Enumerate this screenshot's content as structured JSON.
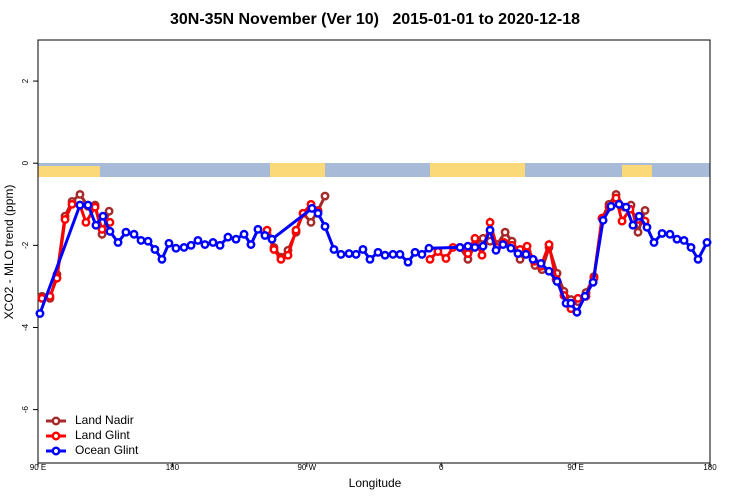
{
  "chart_data": {
    "type": "line",
    "title": "30N-35N November (Ver 10)   2015-01-01 to 2020-12-18",
    "x_label": "Longitude",
    "y_label": "XCO2 - MLO trend (ppm)",
    "xlim": [
      90,
      540
    ],
    "ylim": [
      -7.3,
      3
    ],
    "xticks": [
      {
        "value": 90,
        "label": "90 E"
      },
      180,
      {
        "value": 270,
        "label": "90 W"
      },
      0,
      {
        "value": 450,
        "label": "90 E"
      },
      {
        "value": 540,
        "label": "180"
      }
    ],
    "yticks": [
      -6,
      -4,
      -2,
      0,
      2
    ],
    "legend": "bottom-left",
    "series": [
      {
        "name": "Land Nadir",
        "color": "#a52a2a",
        "x": [
          92.7,
          98.0,
          102.7,
          108.1,
          112.8,
          118.1,
          123.5,
          128.2,
          132.9,
          137.6,
          null,
          243.4,
          248.0,
          252.7,
          257.4,
          262.8,
          267.5,
          272.8,
          277.5,
          282.2,
          null,
          372.6,
          377.9,
          382.6,
          388.0,
          392.7,
          397.4,
          402.8,
          407.4,
          412.8,
          417.5,
          422.8,
          427.5,
          432.2,
          437.6,
          442.2,
          446.9,
          451.6,
          457.0,
          462.3,
          467.7,
          472.4,
          477.1,
          482.5,
          487.1,
          491.8,
          496.5
        ],
        "values": [
          -3.24,
          -3.29,
          -2.71,
          -1.29,
          -0.93,
          -0.76,
          -1.05,
          -1.02,
          -1.73,
          -1.17,
          null,
          -1.73,
          -2.05,
          -2.29,
          -2.12,
          -1.68,
          -1.22,
          -1.44,
          -1.15,
          -0.8,
          null,
          -2.05,
          -2.34,
          -1.98,
          -1.83,
          -1.9,
          -1.98,
          -1.68,
          -1.9,
          -2.34,
          -2.15,
          -2.49,
          -2.59,
          -2.05,
          -2.68,
          -3.12,
          -3.32,
          -3.37,
          -3.15,
          -2.76,
          -1.34,
          -1.0,
          -0.76,
          -1.07,
          -1.02,
          -1.68,
          -1.15
        ]
      },
      {
        "name": "Land Glint",
        "color": "#ff0000",
        "x": [
          92.7,
          98.0,
          102.7,
          108.1,
          112.8,
          118.1,
          122.1,
          128.2,
          132.9,
          138.2,
          null,
          243.4,
          248.0,
          252.7,
          257.4,
          262.8,
          267.5,
          272.8,
          277.5,
          null,
          352.5,
          357.8,
          363.2,
          367.9,
          372.6,
          377.9,
          382.6,
          387.3,
          392.7,
          397.4,
          402.1,
          407.4,
          412.8,
          417.5,
          422.2,
          426.8,
          432.2,
          436.9,
          442.2,
          446.9,
          451.6,
          457.0,
          462.3,
          467.7,
          472.4,
          477.1,
          481.1,
          486.4,
          491.8,
          496.5
        ],
        "values": [
          -3.29,
          -3.24,
          -2.8,
          -1.37,
          -1.0,
          -1.02,
          -1.44,
          -1.07,
          -1.61,
          -1.44,
          null,
          -1.63,
          -2.1,
          -2.34,
          -2.24,
          -1.63,
          -1.22,
          -1.0,
          -1.17,
          null,
          -2.34,
          -2.15,
          -2.32,
          -2.05,
          -2.05,
          -2.2,
          -1.83,
          -2.24,
          -1.44,
          -2.05,
          -1.93,
          -2.0,
          -2.1,
          -2.02,
          -2.39,
          -2.51,
          -1.98,
          -2.83,
          -3.22,
          -3.54,
          -3.29,
          -3.24,
          -2.8,
          -1.34,
          -1.07,
          -0.85,
          -1.41,
          -1.12,
          -1.37,
          -1.41
        ]
      },
      {
        "name": "Ocean Glint",
        "color": "#0000ff",
        "x": [
          91.3,
          118.1,
          123.5,
          128.8,
          133.5,
          138.2,
          143.6,
          148.9,
          154.3,
          159.0,
          163.7,
          168.3,
          173.0,
          177.7,
          182.4,
          187.8,
          192.5,
          197.1,
          201.8,
          207.2,
          211.9,
          217.2,
          222.6,
          228.0,
          232.6,
          237.3,
          242.0,
          246.7,
          273.5,
          277.5,
          282.2,
          288.2,
          292.9,
          298.3,
          303.0,
          307.6,
          312.3,
          317.7,
          322.4,
          327.7,
          332.4,
          337.8,
          342.5,
          347.1,
          351.8,
          372.6,
          377.9,
          382.6,
          388.0,
          392.7,
          396.7,
          401.4,
          406.7,
          411.4,
          416.8,
          421.5,
          426.8,
          432.2,
          437.6,
          443.6,
          446.9,
          450.9,
          456.3,
          461.7,
          468.4,
          473.7,
          479.1,
          483.8,
          488.4,
          492.5,
          497.8,
          502.5,
          507.9,
          513.2,
          517.9,
          522.6,
          527.3,
          532.0,
          538.0
        ],
        "values": [
          -3.66,
          -1.02,
          -1.02,
          -1.51,
          -1.29,
          -1.66,
          -1.93,
          -1.68,
          -1.73,
          -1.88,
          -1.9,
          -2.1,
          -2.34,
          -1.95,
          -2.07,
          -2.05,
          -2.0,
          -1.88,
          -1.98,
          -1.93,
          -2.0,
          -1.8,
          -1.85,
          -1.73,
          -1.98,
          -1.61,
          -1.76,
          -1.85,
          -1.1,
          -1.22,
          -1.54,
          -2.1,
          -2.22,
          -2.2,
          -2.22,
          -2.1,
          -2.34,
          -2.17,
          -2.24,
          -2.22,
          -2.22,
          -2.41,
          -2.17,
          -2.22,
          -2.07,
          -2.05,
          -2.02,
          -2.05,
          -2.02,
          -1.63,
          -2.12,
          -1.98,
          -2.07,
          -2.2,
          -2.22,
          -2.34,
          -2.44,
          -2.63,
          -2.88,
          -3.41,
          -3.41,
          -3.63,
          -3.24,
          -2.9,
          -1.39,
          -1.05,
          -1.0,
          -1.07,
          -1.51,
          -1.29,
          -1.56,
          -1.93,
          -1.71,
          -1.73,
          -1.85,
          -1.88,
          -2.05,
          -2.34,
          -1.93
        ]
      }
    ]
  }
}
